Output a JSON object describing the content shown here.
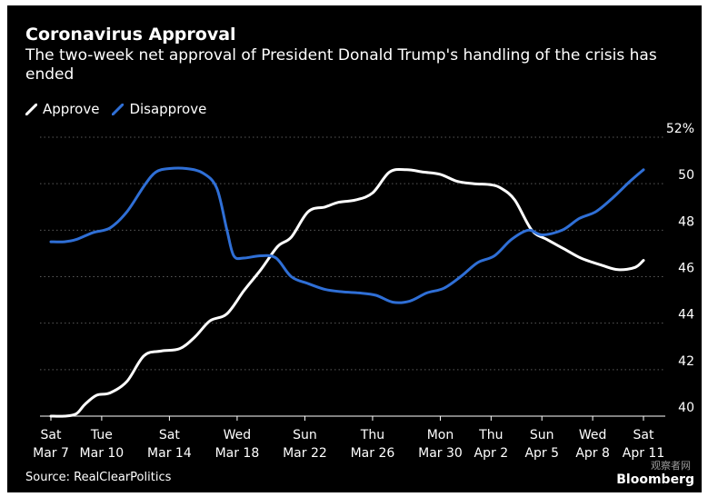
{
  "chart_data": {
    "type": "line",
    "title": "Coronavirus Approval",
    "subtitle": "The two-week net approval of President Donald Trump's handling of the crisis has ended",
    "source": "Source: RealClearPolitics",
    "brand": "Bloomberg",
    "watermark": "观察者网",
    "ylim": [
      39.5,
      52.5
    ],
    "grid": true,
    "legend_position": "top-left",
    "yticks": [
      {
        "value": 40,
        "label": "40"
      },
      {
        "value": 42,
        "label": "42"
      },
      {
        "value": 44,
        "label": "44"
      },
      {
        "value": 46,
        "label": "46"
      },
      {
        "value": 48,
        "label": "48"
      },
      {
        "value": 50,
        "label": "50"
      },
      {
        "value": 52,
        "label": "52%"
      }
    ],
    "xticks": [
      {
        "day": 0,
        "top": "Sat",
        "bottom": "Mar 7"
      },
      {
        "day": 3,
        "top": "Tue",
        "bottom": "Mar 10"
      },
      {
        "day": 7,
        "top": "Sat",
        "bottom": "Mar 14"
      },
      {
        "day": 11,
        "top": "Wed",
        "bottom": "Mar 18"
      },
      {
        "day": 15,
        "top": "Sun",
        "bottom": "Mar 22"
      },
      {
        "day": 19,
        "top": "Thu",
        "bottom": "Mar 26"
      },
      {
        "day": 23,
        "top": "Mon",
        "bottom": "Mar 30"
      },
      {
        "day": 26,
        "top": "Thu",
        "bottom": "Apr 2"
      },
      {
        "day": 29,
        "top": "Sun",
        "bottom": "Apr 5"
      },
      {
        "day": 32,
        "top": "Wed",
        "bottom": "Apr 8"
      },
      {
        "day": 35,
        "top": "Sat",
        "bottom": "Apr 11"
      }
    ],
    "series": [
      {
        "name": "Approve",
        "color": "#ffffff",
        "x": [
          0,
          0.8,
          1.5,
          2,
          2.7,
          3.5,
          4.5,
          5.5,
          6.5,
          7.6,
          8.5,
          9.4,
          10.4,
          11.4,
          12.4,
          13.4,
          14.2,
          15.2,
          16.2,
          17,
          18,
          19,
          20,
          21,
          22,
          23,
          24,
          25,
          26,
          26.6,
          27.4,
          28.4,
          29.3,
          30.3,
          31.3,
          32.5,
          33.5,
          34.5,
          35
        ],
        "values": [
          40.0,
          40.0,
          40.1,
          40.5,
          40.9,
          41.0,
          41.5,
          42.6,
          42.8,
          42.9,
          43.4,
          44.1,
          44.4,
          45.4,
          46.3,
          47.3,
          47.7,
          48.8,
          49.0,
          49.2,
          49.3,
          49.6,
          50.5,
          50.6,
          50.5,
          50.4,
          50.1,
          50.0,
          49.95,
          49.8,
          49.3,
          48.0,
          47.6,
          47.2,
          46.8,
          46.5,
          46.3,
          46.4,
          46.7
        ]
      },
      {
        "name": "Disapprove",
        "color": "#2f6fd6",
        "x": [
          0,
          0.8,
          1.5,
          2.5,
          3.5,
          4.5,
          5.5,
          6.2,
          7,
          8,
          9,
          9.8,
          10.4,
          10.8,
          11.4,
          12.4,
          13.3,
          14.2,
          15.2,
          16.2,
          17.2,
          18.2,
          19.2,
          20.2,
          21.2,
          22.2,
          23.2,
          24.2,
          25.2,
          26.2,
          27.2,
          28.2,
          29,
          30.2,
          31.2,
          32.2,
          33.2,
          34.2,
          35
        ],
        "values": [
          47.5,
          47.5,
          47.6,
          47.9,
          48.1,
          48.8,
          49.9,
          50.5,
          50.65,
          50.65,
          50.45,
          49.8,
          48.0,
          46.9,
          46.8,
          46.9,
          46.8,
          46.0,
          45.7,
          45.45,
          45.35,
          45.3,
          45.2,
          44.9,
          44.95,
          45.3,
          45.5,
          46.0,
          46.6,
          46.9,
          47.6,
          48.0,
          47.8,
          48.0,
          48.5,
          48.8,
          49.4,
          50.1,
          50.6
        ]
      }
    ]
  }
}
